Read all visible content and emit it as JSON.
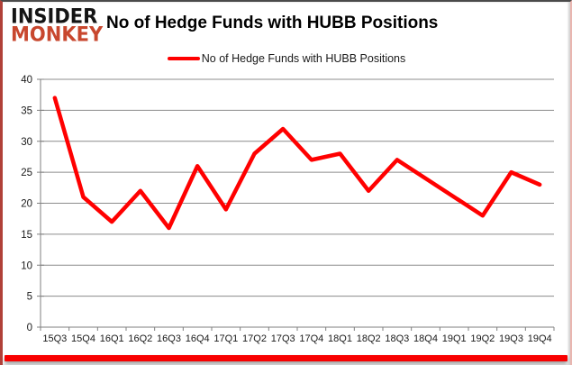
{
  "header": {
    "logo_line1": "INSIDER",
    "logo_line2": "MONKEY",
    "title": "No of Hedge Funds with HUBB Positions"
  },
  "legend": {
    "label": "No of Hedge Funds with HUBB Positions"
  },
  "colors": {
    "line": "#ff0000",
    "grid": "#8c8c8c",
    "axis": "#7f7f7f",
    "tick_text": "#1a1a1a",
    "logo_black": "#141414",
    "logo_red": "#c8472e",
    "bottom_bar": "#f80000"
  },
  "chart_data": {
    "type": "line",
    "title": "No of Hedge Funds with HUBB Positions",
    "series": [
      {
        "name": "No of Hedge Funds with HUBB Positions",
        "values": [
          37,
          21,
          17,
          22,
          16,
          26,
          19,
          28,
          32,
          27,
          28,
          22,
          27,
          24,
          21,
          18,
          25,
          23
        ]
      }
    ],
    "categories": [
      "15Q3",
      "15Q4",
      "16Q1",
      "16Q2",
      "16Q3",
      "16Q4",
      "17Q1",
      "17Q2",
      "17Q3",
      "17Q4",
      "18Q1",
      "18Q2",
      "18Q3",
      "18Q4",
      "19Q1",
      "19Q2",
      "19Q3",
      "19Q4"
    ],
    "xlabel": "",
    "ylabel": "",
    "ylim": [
      0,
      40
    ],
    "ytick_step": 5,
    "grid": true,
    "legend_position": "top-center"
  }
}
